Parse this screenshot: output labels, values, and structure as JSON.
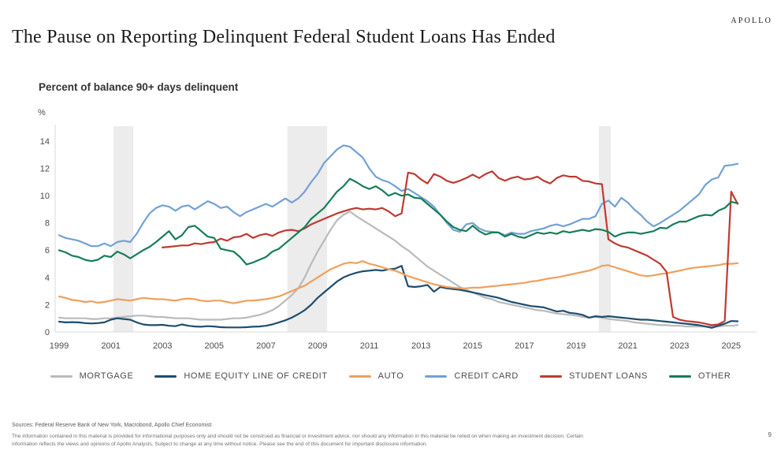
{
  "slide": {
    "logo": "APOLLO",
    "title": "The Pause on Reporting Delinquent Federal Student Loans Has Ended",
    "subtitle": "Percent of balance 90+ days delinquent",
    "y_axis_unit": "%",
    "page_number": "9",
    "sources": "Sources: Federal Reserve Bank of New York, Macrobond, Apollo Chief Economist",
    "disclaimer": "The information contained in this material is provided for informational purposes only and should not be construed as financial or investment advice, nor should any information in this material be relied on when making an investment decision. Certain information reflects the views and opinions of Apollo Analysts. Subject to change at any time without notice. Please see the end of this document for important disclosure information."
  },
  "chart_data": {
    "type": "line",
    "title": "Percent of balance 90+ days delinquent",
    "xlabel": "",
    "ylabel": "%",
    "x_unit": "year, quarterly observations",
    "ylim": [
      0,
      15
    ],
    "y_ticks": [
      0,
      2,
      4,
      6,
      8,
      10,
      12,
      14
    ],
    "x_ticks": [
      1999,
      2001,
      2003,
      2005,
      2007,
      2009,
      2011,
      2013,
      2015,
      2017,
      2019,
      2021,
      2023,
      2025
    ],
    "x_range": [
      1999,
      2026
    ],
    "grid": false,
    "legend_position": "bottom",
    "recession_band_color": "#ececec",
    "axis_color": "#d9d9d9",
    "tick_label_color": "#4a4a4a",
    "recession_bands": [
      [
        2001.1,
        2001.87
      ],
      [
        2007.83,
        2009.37
      ],
      [
        2019.88,
        2020.34
      ]
    ],
    "series": [
      {
        "name": "MORTGAGE",
        "color": "#b9babc",
        "start_year": 1999,
        "step_years": 0.25,
        "values": [
          1.05,
          1.0,
          1.0,
          1.0,
          1.0,
          0.95,
          0.95,
          1.0,
          1.0,
          1.05,
          1.1,
          1.15,
          1.2,
          1.2,
          1.15,
          1.1,
          1.1,
          1.05,
          1.0,
          1.0,
          1.0,
          0.95,
          0.9,
          0.9,
          0.9,
          0.9,
          0.95,
          1.0,
          1.0,
          1.05,
          1.15,
          1.25,
          1.4,
          1.6,
          1.9,
          2.3,
          2.7,
          3.2,
          4.0,
          5.0,
          5.9,
          6.7,
          7.5,
          8.2,
          8.6,
          8.85,
          8.5,
          8.2,
          7.9,
          7.6,
          7.3,
          7.0,
          6.7,
          6.3,
          6.0,
          5.6,
          5.2,
          4.8,
          4.5,
          4.2,
          3.9,
          3.6,
          3.3,
          3.1,
          2.9,
          2.7,
          2.5,
          2.4,
          2.2,
          2.1,
          2.0,
          1.9,
          1.8,
          1.7,
          1.6,
          1.55,
          1.45,
          1.35,
          1.3,
          1.25,
          1.2,
          1.1,
          1.05,
          1.1,
          1.05,
          0.95,
          0.9,
          0.85,
          0.8,
          0.7,
          0.65,
          0.6,
          0.55,
          0.5,
          0.5,
          0.45,
          0.45,
          0.4,
          0.4,
          0.4,
          0.4,
          0.4,
          0.4,
          0.45,
          0.45,
          0.5
        ]
      },
      {
        "name": "HOME EQUITY LINE OF CREDIT",
        "color": "#1e4d6e",
        "start_year": 1999,
        "step_years": 0.25,
        "values": [
          0.75,
          0.7,
          0.72,
          0.7,
          0.65,
          0.62,
          0.65,
          0.7,
          0.9,
          1.0,
          0.95,
          0.9,
          0.7,
          0.55,
          0.5,
          0.5,
          0.52,
          0.45,
          0.42,
          0.55,
          0.45,
          0.4,
          0.38,
          0.42,
          0.4,
          0.35,
          0.33,
          0.33,
          0.33,
          0.35,
          0.38,
          0.4,
          0.45,
          0.55,
          0.7,
          0.85,
          1.05,
          1.3,
          1.6,
          2.0,
          2.5,
          2.9,
          3.3,
          3.7,
          4.0,
          4.2,
          4.35,
          4.45,
          4.5,
          4.55,
          4.5,
          4.6,
          4.65,
          4.85,
          3.35,
          3.3,
          3.35,
          3.45,
          2.95,
          3.3,
          3.2,
          3.15,
          3.1,
          3.0,
          2.9,
          2.8,
          2.7,
          2.6,
          2.5,
          2.35,
          2.2,
          2.1,
          2.0,
          1.9,
          1.85,
          1.8,
          1.65,
          1.5,
          1.55,
          1.4,
          1.35,
          1.25,
          1.05,
          1.15,
          1.1,
          1.15,
          1.1,
          1.05,
          1.0,
          0.95,
          0.9,
          0.9,
          0.85,
          0.8,
          0.75,
          0.7,
          0.65,
          0.6,
          0.55,
          0.5,
          0.4,
          0.3,
          0.45,
          0.6,
          0.8,
          0.78
        ]
      },
      {
        "name": "AUTO",
        "color": "#efa05c",
        "start_year": 1999,
        "step_years": 0.25,
        "values": [
          2.6,
          2.5,
          2.35,
          2.3,
          2.2,
          2.25,
          2.15,
          2.2,
          2.3,
          2.4,
          2.35,
          2.3,
          2.4,
          2.5,
          2.45,
          2.4,
          2.4,
          2.35,
          2.3,
          2.4,
          2.45,
          2.4,
          2.3,
          2.25,
          2.3,
          2.3,
          2.2,
          2.1,
          2.2,
          2.3,
          2.3,
          2.35,
          2.4,
          2.5,
          2.6,
          2.8,
          3.0,
          3.2,
          3.4,
          3.7,
          4.0,
          4.3,
          4.6,
          4.8,
          5.0,
          5.1,
          5.05,
          5.2,
          5.0,
          4.9,
          4.75,
          4.6,
          4.5,
          4.3,
          4.1,
          3.95,
          3.8,
          3.65,
          3.5,
          3.4,
          3.3,
          3.25,
          3.2,
          3.2,
          3.25,
          3.25,
          3.3,
          3.35,
          3.4,
          3.45,
          3.5,
          3.55,
          3.6,
          3.7,
          3.75,
          3.85,
          3.95,
          4.0,
          4.1,
          4.2,
          4.3,
          4.4,
          4.5,
          4.65,
          4.85,
          4.9,
          4.75,
          4.6,
          4.45,
          4.3,
          4.15,
          4.1,
          4.15,
          4.25,
          4.3,
          4.4,
          4.5,
          4.6,
          4.7,
          4.75,
          4.8,
          4.85,
          4.9,
          5.0,
          5.0,
          5.05
        ]
      },
      {
        "name": "CREDIT CARD",
        "color": "#72a1d5",
        "start_year": 1999,
        "step_years": 0.25,
        "values": [
          7.1,
          6.9,
          6.8,
          6.7,
          6.5,
          6.3,
          6.3,
          6.5,
          6.3,
          6.6,
          6.7,
          6.6,
          7.2,
          8.0,
          8.7,
          9.1,
          9.3,
          9.2,
          8.9,
          9.2,
          9.3,
          9.0,
          9.3,
          9.6,
          9.4,
          9.1,
          9.2,
          8.8,
          8.5,
          8.8,
          9.0,
          9.2,
          9.4,
          9.2,
          9.5,
          9.8,
          9.5,
          9.8,
          10.3,
          11.0,
          11.6,
          12.4,
          12.9,
          13.4,
          13.7,
          13.6,
          13.2,
          12.8,
          12.0,
          11.4,
          11.15,
          11.0,
          10.7,
          10.35,
          10.5,
          10.2,
          9.9,
          9.6,
          9.2,
          8.6,
          8.0,
          7.5,
          7.35,
          7.9,
          8.0,
          7.6,
          7.4,
          7.35,
          7.3,
          7.1,
          7.3,
          7.2,
          7.2,
          7.4,
          7.5,
          7.6,
          7.8,
          7.9,
          7.75,
          7.9,
          8.1,
          8.3,
          8.3,
          8.5,
          9.4,
          9.65,
          9.2,
          9.85,
          9.5,
          9.0,
          8.6,
          8.1,
          7.75,
          8.0,
          8.3,
          8.6,
          8.9,
          9.3,
          9.7,
          10.1,
          10.8,
          11.2,
          11.35,
          12.2,
          12.25,
          12.35
        ]
      },
      {
        "name": "STUDENT LOANS",
        "color": "#bf3a32",
        "start_year": 2003,
        "step_years": 0.25,
        "values": [
          6.2,
          6.25,
          6.3,
          6.35,
          6.35,
          6.5,
          6.45,
          6.55,
          6.6,
          6.85,
          6.7,
          6.95,
          7.0,
          7.2,
          6.9,
          7.1,
          7.2,
          7.05,
          7.3,
          7.45,
          7.5,
          7.4,
          7.6,
          7.9,
          8.1,
          8.3,
          8.5,
          8.7,
          8.85,
          9.0,
          9.1,
          9.0,
          9.05,
          9.0,
          9.1,
          8.85,
          8.5,
          8.7,
          11.7,
          11.6,
          11.2,
          10.9,
          11.6,
          11.4,
          11.1,
          10.95,
          11.1,
          11.3,
          11.55,
          11.3,
          11.6,
          11.8,
          11.3,
          11.1,
          11.3,
          11.4,
          11.2,
          11.25,
          11.4,
          11.1,
          10.9,
          11.3,
          11.5,
          11.4,
          11.4,
          11.1,
          11.05,
          10.9,
          10.85,
          6.8,
          6.5,
          6.3,
          6.2,
          6.0,
          5.8,
          5.6,
          5.3,
          5.0,
          4.4,
          1.1,
          0.9,
          0.8,
          0.75,
          0.7,
          0.6,
          0.5,
          0.55,
          0.8,
          10.3,
          9.4
        ]
      },
      {
        "name": "OTHER",
        "color": "#177d57",
        "start_year": 1999,
        "step_years": 0.25,
        "values": [
          6.0,
          5.85,
          5.6,
          5.5,
          5.3,
          5.2,
          5.3,
          5.6,
          5.5,
          5.9,
          5.7,
          5.4,
          5.7,
          6.0,
          6.25,
          6.6,
          7.0,
          7.4,
          6.8,
          7.1,
          7.7,
          7.8,
          7.4,
          7.0,
          6.9,
          6.1,
          6.0,
          5.9,
          5.5,
          4.95,
          5.1,
          5.3,
          5.5,
          5.9,
          6.1,
          6.5,
          6.9,
          7.3,
          7.7,
          8.3,
          8.7,
          9.1,
          9.7,
          10.3,
          10.7,
          11.25,
          11.0,
          10.7,
          10.5,
          10.7,
          10.4,
          10.0,
          10.2,
          10.0,
          10.1,
          9.85,
          9.8,
          9.4,
          9.0,
          8.6,
          8.1,
          7.7,
          7.5,
          7.4,
          7.8,
          7.4,
          7.15,
          7.3,
          7.3,
          7.0,
          7.2,
          7.0,
          6.9,
          7.1,
          7.3,
          7.2,
          7.3,
          7.2,
          7.4,
          7.3,
          7.4,
          7.5,
          7.4,
          7.55,
          7.5,
          7.35,
          7.0,
          7.2,
          7.3,
          7.3,
          7.2,
          7.3,
          7.4,
          7.65,
          7.6,
          7.9,
          8.1,
          8.1,
          8.3,
          8.5,
          8.6,
          8.55,
          8.9,
          9.1,
          9.55,
          9.45
        ]
      }
    ]
  }
}
